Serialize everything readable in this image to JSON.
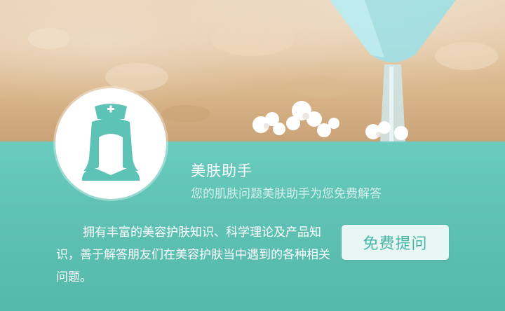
{
  "banner": {
    "image": "beach-sand-cocktail-glass-photo"
  },
  "assistant": {
    "avatar_icon": "nurse-icon",
    "title": "美肤助手",
    "subtitle": "您的肌肤问题美肤助手为您免费解答",
    "description": "拥有丰富的美容护肤知识、科学理论及产品知识，善于解答朋友们在美容护肤当中遇到的各种相关问题。",
    "ask_button_label": "免费提问"
  },
  "colors": {
    "panel_teal": "#5fc2b4",
    "avatar_teal": "#5cc3b6",
    "button_bg": "#e9f7f4",
    "button_text": "#48b4a6"
  }
}
